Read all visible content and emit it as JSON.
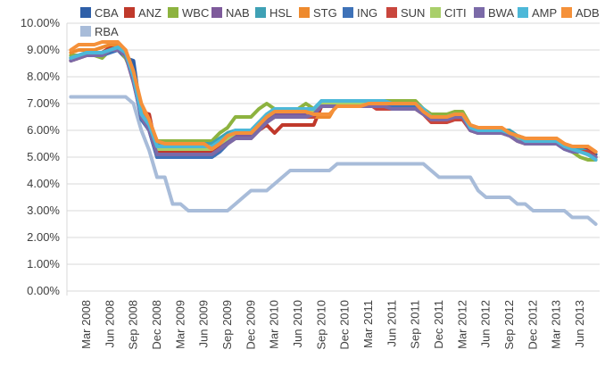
{
  "chart_data": {
    "type": "line",
    "title": "",
    "xlabel": "",
    "ylabel": "",
    "ylim": [
      0,
      10
    ],
    "y_ticks": [
      "0.00%",
      "1.00%",
      "2.00%",
      "3.00%",
      "4.00%",
      "5.00%",
      "6.00%",
      "7.00%",
      "8.00%",
      "9.00%",
      "10.00%"
    ],
    "grid": "horizontal",
    "legend_position": "top-right",
    "x_start": "Jan 2008",
    "x_end": "Aug 2013",
    "x_tick_labels": [
      "Mar 2008",
      "Jun 2008",
      "Sep 2008",
      "Dec 2008",
      "Mar 2009",
      "Jun 2009",
      "Sep 2009",
      "Dec 2009",
      "Mar 2010",
      "Jun 2010",
      "Sep 2010",
      "Dec 2010",
      "Mar 2011",
      "Jun 2011",
      "Sep 2011",
      "Dec 2011",
      "Mar 2012",
      "Jun 2012",
      "Sep 2012",
      "Dec 2012",
      "Mar 2013",
      "Jun 2013"
    ],
    "x": [
      "Jan 2008",
      "Feb 2008",
      "Mar 2008",
      "Apr 2008",
      "May 2008",
      "Jun 2008",
      "Jul 2008",
      "Aug 2008",
      "Sep 2008",
      "Oct 2008",
      "Nov 2008",
      "Dec 2008",
      "Jan 2009",
      "Feb 2009",
      "Mar 2009",
      "Apr 2009",
      "May 2009",
      "Jun 2009",
      "Jul 2009",
      "Aug 2009",
      "Sep 2009",
      "Oct 2009",
      "Nov 2009",
      "Dec 2009",
      "Jan 2010",
      "Feb 2010",
      "Mar 2010",
      "Apr 2010",
      "May 2010",
      "Jun 2010",
      "Jul 2010",
      "Aug 2010",
      "Sep 2010",
      "Oct 2010",
      "Nov 2010",
      "Dec 2010",
      "Jan 2011",
      "Feb 2011",
      "Mar 2011",
      "Apr 2011",
      "May 2011",
      "Jun 2011",
      "Jul 2011",
      "Aug 2011",
      "Sep 2011",
      "Oct 2011",
      "Nov 2011",
      "Dec 2011",
      "Jan 2012",
      "Feb 2012",
      "Mar 2012",
      "Apr 2012",
      "May 2012",
      "Jun 2012",
      "Jul 2012",
      "Aug 2012",
      "Sep 2012",
      "Oct 2012",
      "Nov 2012",
      "Dec 2012",
      "Jan 2013",
      "Feb 2013",
      "Mar 2013",
      "Apr 2013",
      "May 2013",
      "Jun 2013",
      "Jul 2013",
      "Aug 2013"
    ],
    "series": [
      {
        "name": "CBA",
        "color": "#2e5fa8",
        "values": [
          8.7,
          8.8,
          8.9,
          8.9,
          8.9,
          9.0,
          9.0,
          8.7,
          8.6,
          6.5,
          6.0,
          5.0,
          5.0,
          5.0,
          5.0,
          5.0,
          5.0,
          5.0,
          5.0,
          5.2,
          5.5,
          5.8,
          5.8,
          5.8,
          6.1,
          6.4,
          6.6,
          6.6,
          6.6,
          6.6,
          6.6,
          6.7,
          7.0,
          7.0,
          7.0,
          7.0,
          7.0,
          7.0,
          7.0,
          7.0,
          7.0,
          6.9,
          6.9,
          6.9,
          6.9,
          6.7,
          6.4,
          6.4,
          6.4,
          6.5,
          6.5,
          6.0,
          5.9,
          5.9,
          5.9,
          5.9,
          5.9,
          5.7,
          5.6,
          5.5,
          5.5,
          5.5,
          5.5,
          5.4,
          5.4,
          5.2,
          5.2,
          5.1
        ]
      },
      {
        "name": "ANZ",
        "color": "#c0392b",
        "values": [
          8.6,
          8.7,
          8.8,
          8.8,
          8.9,
          9.1,
          9.1,
          8.9,
          7.8,
          6.7,
          6.6,
          5.2,
          5.2,
          5.2,
          5.2,
          5.2,
          5.2,
          5.2,
          5.2,
          5.4,
          5.6,
          5.8,
          5.8,
          5.8,
          6.0,
          6.2,
          5.9,
          6.2,
          6.2,
          6.2,
          6.2,
          6.2,
          6.9,
          6.9,
          6.9,
          6.9,
          6.9,
          6.9,
          6.9,
          6.9,
          6.9,
          6.8,
          6.8,
          6.8,
          6.8,
          6.6,
          6.4,
          6.4,
          6.4,
          6.5,
          6.5,
          6.0,
          5.9,
          5.9,
          5.9,
          5.9,
          5.9,
          5.7,
          5.5,
          5.5,
          5.5,
          5.5,
          5.5,
          5.4,
          5.3,
          5.3,
          5.3,
          5.0
        ]
      },
      {
        "name": "WBC",
        "color": "#8db33f",
        "values": [
          8.8,
          8.8,
          8.8,
          8.8,
          8.7,
          9.0,
          9.1,
          8.7,
          8.0,
          6.8,
          6.2,
          5.6,
          5.6,
          5.6,
          5.6,
          5.6,
          5.6,
          5.6,
          5.6,
          5.9,
          6.1,
          6.5,
          6.5,
          6.5,
          6.8,
          7.0,
          6.8,
          6.8,
          6.8,
          6.8,
          7.0,
          6.8,
          7.0,
          7.0,
          7.0,
          7.0,
          7.0,
          7.1,
          7.1,
          7.1,
          7.1,
          7.1,
          7.1,
          7.1,
          7.1,
          6.8,
          6.6,
          6.6,
          6.6,
          6.7,
          6.7,
          6.2,
          6.0,
          6.0,
          6.0,
          6.0,
          5.8,
          5.8,
          5.7,
          5.7,
          5.7,
          5.7,
          5.7,
          5.5,
          5.2,
          5.0,
          4.9,
          4.9
        ]
      },
      {
        "name": "NAB",
        "color": "#7e5a9b",
        "values": [
          8.7,
          8.8,
          8.9,
          8.9,
          8.9,
          9.0,
          9.1,
          8.9,
          8.0,
          6.6,
          6.1,
          5.1,
          5.1,
          5.1,
          5.1,
          5.1,
          5.1,
          5.1,
          5.1,
          5.3,
          5.6,
          5.8,
          5.8,
          5.8,
          6.1,
          6.4,
          6.6,
          6.6,
          6.6,
          6.6,
          6.6,
          6.7,
          7.0,
          7.0,
          7.0,
          7.0,
          7.0,
          7.0,
          7.0,
          7.0,
          7.0,
          6.9,
          6.9,
          6.9,
          6.9,
          6.7,
          6.4,
          6.4,
          6.4,
          6.5,
          6.5,
          6.0,
          5.9,
          5.9,
          5.9,
          5.9,
          5.9,
          5.7,
          5.5,
          5.5,
          5.5,
          5.5,
          5.5,
          5.4,
          5.2,
          5.3,
          5.2,
          5.0
        ]
      },
      {
        "name": "HSL",
        "color": "#3fa1b5",
        "values": [
          8.7,
          8.8,
          8.9,
          8.9,
          8.9,
          9.0,
          9.1,
          8.9,
          8.0,
          6.6,
          6.2,
          5.5,
          5.5,
          5.5,
          5.5,
          5.5,
          5.5,
          5.5,
          5.5,
          5.7,
          5.9,
          6.0,
          6.0,
          6.0,
          6.3,
          6.6,
          6.8,
          6.8,
          6.8,
          6.8,
          6.8,
          6.8,
          7.1,
          7.1,
          7.1,
          7.1,
          7.1,
          7.1,
          7.1,
          7.1,
          7.1,
          7.0,
          7.0,
          7.0,
          7.0,
          6.8,
          6.5,
          6.5,
          6.5,
          6.6,
          6.6,
          6.1,
          6.0,
          6.0,
          6.0,
          6.0,
          6.0,
          5.8,
          5.6,
          5.6,
          5.6,
          5.6,
          5.6,
          5.4,
          5.3,
          5.3,
          5.2,
          5.0
        ]
      },
      {
        "name": "STG",
        "color": "#ee8a2e",
        "values": [
          8.9,
          9.0,
          9.0,
          9.0,
          9.1,
          9.2,
          9.2,
          9.0,
          8.0,
          6.9,
          6.3,
          5.6,
          5.5,
          5.5,
          5.5,
          5.5,
          5.5,
          5.5,
          5.3,
          5.5,
          5.8,
          5.9,
          5.9,
          5.9,
          6.2,
          6.5,
          6.7,
          6.7,
          6.7,
          6.7,
          6.7,
          6.5,
          6.5,
          6.5,
          7.0,
          7.0,
          7.0,
          7.0,
          7.0,
          7.0,
          7.0,
          7.0,
          7.0,
          7.0,
          7.0,
          6.7,
          6.5,
          6.5,
          6.5,
          6.6,
          6.6,
          6.2,
          6.1,
          6.1,
          6.1,
          6.1,
          5.9,
          5.8,
          5.7,
          5.7,
          5.7,
          5.7,
          5.7,
          5.5,
          5.4,
          5.4,
          5.4,
          5.2
        ]
      },
      {
        "name": "ING",
        "color": "#3e72b8",
        "values": [
          8.6,
          8.7,
          8.8,
          8.8,
          8.8,
          8.9,
          9.0,
          8.8,
          7.9,
          6.4,
          6.0,
          5.0,
          5.0,
          5.0,
          5.0,
          5.0,
          5.0,
          5.0,
          5.0,
          5.2,
          5.5,
          5.7,
          5.7,
          5.7,
          6.0,
          6.3,
          6.5,
          6.5,
          6.5,
          6.5,
          6.5,
          6.5,
          7.0,
          7.0,
          7.0,
          7.0,
          7.0,
          7.0,
          7.0,
          7.0,
          7.0,
          6.9,
          6.9,
          6.9,
          6.9,
          6.7,
          6.4,
          6.4,
          6.4,
          6.5,
          6.5,
          6.0,
          5.9,
          5.9,
          5.9,
          5.9,
          5.8,
          5.7,
          5.5,
          5.5,
          5.5,
          5.5,
          5.5,
          5.3,
          5.2,
          5.2,
          5.1,
          5.0
        ]
      },
      {
        "name": "SUN",
        "color": "#c9463d",
        "values": [
          8.6,
          8.7,
          8.8,
          8.8,
          8.8,
          9.0,
          9.0,
          8.8,
          7.8,
          6.6,
          6.2,
          5.1,
          5.1,
          5.1,
          5.1,
          5.1,
          5.1,
          5.1,
          5.1,
          5.3,
          5.5,
          5.7,
          5.7,
          5.7,
          6.0,
          6.3,
          6.5,
          6.5,
          6.5,
          6.5,
          6.5,
          6.5,
          7.0,
          7.0,
          7.0,
          7.0,
          7.0,
          7.0,
          7.0,
          6.8,
          6.8,
          6.8,
          6.8,
          6.8,
          6.8,
          6.6,
          6.3,
          6.3,
          6.3,
          6.4,
          6.4,
          6.0,
          5.9,
          5.9,
          5.9,
          5.9,
          5.8,
          5.6,
          5.5,
          5.5,
          5.5,
          5.5,
          5.5,
          5.4,
          5.2,
          5.2,
          5.2,
          5.0
        ]
      },
      {
        "name": "CITI",
        "color": "#a9cf6a",
        "values": [
          8.7,
          8.8,
          8.8,
          8.8,
          8.8,
          9.0,
          9.1,
          8.8,
          7.9,
          6.6,
          6.1,
          5.3,
          5.3,
          5.3,
          5.3,
          5.3,
          5.3,
          5.3,
          5.3,
          5.5,
          5.7,
          5.9,
          5.9,
          5.9,
          6.2,
          6.5,
          6.7,
          6.7,
          6.7,
          6.7,
          6.7,
          6.7,
          7.0,
          7.0,
          7.0,
          7.0,
          7.0,
          7.0,
          7.0,
          7.0,
          7.0,
          7.0,
          7.0,
          7.0,
          7.0,
          6.8,
          6.5,
          6.5,
          6.5,
          6.6,
          6.6,
          6.1,
          6.0,
          6.0,
          6.0,
          6.0,
          5.8,
          5.7,
          5.6,
          5.6,
          5.6,
          5.6,
          5.6,
          5.4,
          5.2,
          5.2,
          5.1,
          5.0
        ]
      },
      {
        "name": "BWA",
        "color": "#7b6aa8",
        "values": [
          8.6,
          8.7,
          8.8,
          8.8,
          8.8,
          9.0,
          9.0,
          8.8,
          7.8,
          6.5,
          6.0,
          5.1,
          5.1,
          5.1,
          5.1,
          5.1,
          5.1,
          5.1,
          5.1,
          5.3,
          5.5,
          5.7,
          5.7,
          5.7,
          6.0,
          6.3,
          6.5,
          6.5,
          6.5,
          6.5,
          6.5,
          6.6,
          6.9,
          6.9,
          6.9,
          6.9,
          6.9,
          6.9,
          6.9,
          6.9,
          6.9,
          6.8,
          6.8,
          6.8,
          6.8,
          6.6,
          6.4,
          6.4,
          6.4,
          6.5,
          6.5,
          6.0,
          5.9,
          5.9,
          5.9,
          5.9,
          5.8,
          5.6,
          5.5,
          5.5,
          5.5,
          5.5,
          5.5,
          5.3,
          5.2,
          5.2,
          5.1,
          5.0
        ]
      },
      {
        "name": "AMP",
        "color": "#4db8d8",
        "values": [
          8.7,
          8.8,
          8.9,
          8.9,
          8.9,
          9.0,
          9.1,
          8.9,
          8.0,
          6.6,
          6.2,
          5.4,
          5.4,
          5.4,
          5.4,
          5.4,
          5.4,
          5.4,
          5.4,
          5.6,
          5.8,
          6.0,
          6.0,
          6.0,
          6.3,
          6.6,
          6.8,
          6.8,
          6.8,
          6.8,
          6.8,
          6.8,
          7.1,
          7.1,
          7.1,
          7.1,
          7.1,
          7.1,
          7.1,
          7.1,
          7.1,
          7.0,
          7.0,
          7.0,
          7.0,
          6.8,
          6.5,
          6.5,
          6.5,
          6.6,
          6.6,
          6.1,
          6.0,
          6.0,
          6.0,
          6.0,
          5.9,
          5.8,
          5.6,
          5.6,
          5.6,
          5.6,
          5.6,
          5.4,
          5.3,
          5.2,
          5.1,
          4.9
        ]
      },
      {
        "name": "ADB",
        "color": "#f5913a",
        "values": [
          9.0,
          9.2,
          9.2,
          9.2,
          9.3,
          9.3,
          9.3,
          9.0,
          8.2,
          7.0,
          6.4,
          5.6,
          5.5,
          5.5,
          5.5,
          5.5,
          5.5,
          5.5,
          5.3,
          5.5,
          5.8,
          5.9,
          5.9,
          5.9,
          6.2,
          6.5,
          6.7,
          6.7,
          6.7,
          6.7,
          6.7,
          6.6,
          6.6,
          6.6,
          6.9,
          6.9,
          6.9,
          6.9,
          7.0,
          7.0,
          7.0,
          7.0,
          7.0,
          7.0,
          7.0,
          6.7,
          6.5,
          6.5,
          6.5,
          6.6,
          6.6,
          6.2,
          6.1,
          6.1,
          6.1,
          6.1,
          5.9,
          5.8,
          5.7,
          5.7,
          5.7,
          5.7,
          5.7,
          5.5,
          5.4,
          5.4,
          5.4,
          5.2
        ]
      },
      {
        "name": "RBA",
        "color": "#a8bcd9",
        "values": [
          7.25,
          7.25,
          7.25,
          7.25,
          7.25,
          7.25,
          7.25,
          7.25,
          7.0,
          6.0,
          5.25,
          4.25,
          4.25,
          3.25,
          3.25,
          3.0,
          3.0,
          3.0,
          3.0,
          3.0,
          3.0,
          3.25,
          3.5,
          3.75,
          3.75,
          3.75,
          4.0,
          4.25,
          4.5,
          4.5,
          4.5,
          4.5,
          4.5,
          4.5,
          4.75,
          4.75,
          4.75,
          4.75,
          4.75,
          4.75,
          4.75,
          4.75,
          4.75,
          4.75,
          4.75,
          4.75,
          4.5,
          4.25,
          4.25,
          4.25,
          4.25,
          4.25,
          3.75,
          3.5,
          3.5,
          3.5,
          3.5,
          3.25,
          3.25,
          3.0,
          3.0,
          3.0,
          3.0,
          3.0,
          2.75,
          2.75,
          2.75,
          2.5
        ]
      }
    ]
  }
}
